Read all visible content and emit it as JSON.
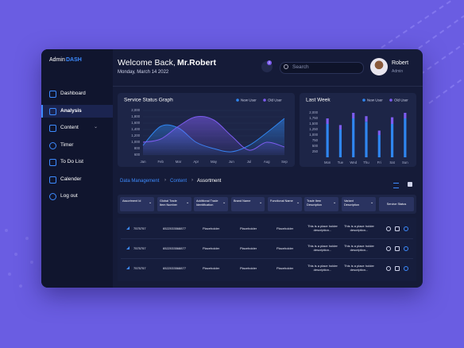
{
  "logo": {
    "prefix": "Admin",
    "suffix": "DASH"
  },
  "menu": [
    "Dashboard",
    "Analysis",
    "Content",
    "Timer",
    "To Do List",
    "Calender",
    "Log out"
  ],
  "header": {
    "greeting": "Welcome Back,",
    "user_name": "Mr.Robert",
    "date": "Monday, March 14  2022",
    "notifications": "2",
    "search_placeholder": "Search",
    "profile_name": "Robert",
    "profile_role": "Admin"
  },
  "chart_data": [
    {
      "type": "line",
      "title": "Service Status Graph",
      "area": true,
      "grid": true,
      "categories": [
        "Jan",
        "Feb",
        "Mar",
        "Apr",
        "May",
        "Jun",
        "Jul",
        "Aug",
        "Sep"
      ],
      "series": [
        {
          "name": "New User",
          "color": "#2f86f0",
          "values": [
            900,
            1500,
            1450,
            1000,
            800,
            700,
            900,
            1300,
            1750
          ]
        },
        {
          "name": "Old User",
          "color": "#7d5cf0",
          "values": [
            1000,
            1100,
            1500,
            1800,
            1700,
            1200,
            750,
            1000,
            850
          ]
        }
      ],
      "ylim": [
        600,
        2000
      ],
      "yticks": [
        600,
        800,
        {
          "value": 1000,
          "label": "1,000"
        },
        {
          "value": 1200,
          "label": "1,200"
        },
        {
          "value": 1400,
          "label": "1,400"
        },
        {
          "value": 1600,
          "label": "1,600"
        },
        {
          "value": 1800,
          "label": "1,800"
        },
        {
          "value": 2000,
          "label": "2,000"
        }
      ]
    },
    {
      "type": "bar",
      "title": "Last Week",
      "stacked": true,
      "grid": false,
      "categories": [
        "Mon",
        "Tue",
        "Wed",
        "Thu",
        "Fri",
        "Sat",
        "Sun"
      ],
      "series": [
        {
          "name": "New User",
          "color": "#2f86f0",
          "values": [
            1500,
            1250,
            1750,
            1600,
            1000,
            1500,
            1750
          ]
        },
        {
          "name": "Old User",
          "color": "#7d5cf0",
          "values": [
            250,
            200,
            250,
            250,
            200,
            300,
            250
          ]
        }
      ],
      "ylim": [
        0,
        2000
      ],
      "yticks": [
        250,
        500,
        750,
        {
          "value": 1000,
          "label": "1,000"
        },
        {
          "value": 1250,
          "label": "1,250"
        },
        {
          "value": 1500,
          "label": "1,500"
        },
        {
          "value": 1750,
          "label": "1,750"
        },
        {
          "value": 2000,
          "label": "2,000"
        }
      ]
    }
  ],
  "breadcrumb": [
    "Data Management",
    "Content",
    "Assortment"
  ],
  "table": {
    "columns": [
      "Assortment Id",
      "Global Trade Item Number",
      "Additional Trade Identification",
      "Brand Name",
      "Functional Name",
      "Trade Item Description",
      "Variant Description",
      "Service Status"
    ],
    "rows": [
      [
        "7575757",
        "6522033568877",
        "Placeholder",
        "Placeholder",
        "Placeholder",
        "This is a place holder description...",
        "This is a place holder description..."
      ],
      [
        "7575757",
        "6522033568877",
        "Placeholder",
        "Placeholder",
        "Placeholder",
        "This is a place holder description...",
        "This is a place holder description..."
      ],
      [
        "7575757",
        "6522033568877",
        "Placeholder",
        "Placeholder",
        "Placeholder",
        "This is a place holder description...",
        "This is a place holder description..."
      ]
    ]
  }
}
